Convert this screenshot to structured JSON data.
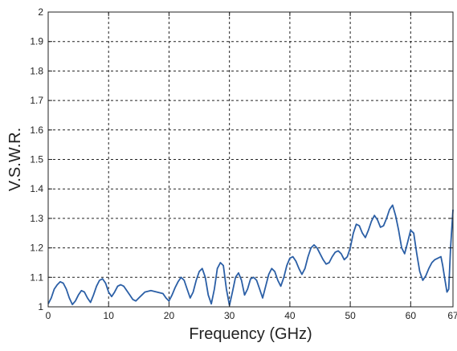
{
  "chart_data": {
    "type": "line",
    "title": "",
    "xlabel": "Frequency (GHz)",
    "ylabel": "V.S.W.R.",
    "xlim": [
      0,
      67
    ],
    "ylim": [
      1,
      2
    ],
    "x_ticks": [
      0,
      10,
      20,
      30,
      40,
      50,
      60,
      67
    ],
    "y_ticks": [
      1,
      1.1,
      1.2,
      1.3,
      1.4,
      1.5,
      1.6,
      1.7,
      1.8,
      1.9,
      2
    ],
    "x_tick_labels": [
      "0",
      "10",
      "20",
      "30",
      "40",
      "50",
      "60",
      "67"
    ],
    "y_tick_labels": [
      "1",
      "1.1",
      "1.2",
      "1.3",
      "1.4",
      "1.5",
      "1.6",
      "1.7",
      "1.8",
      "1.9",
      "2"
    ],
    "grid": true,
    "grid_style": "dashed",
    "legend": "none",
    "series": [
      {
        "color": "#2b5fa6",
        "points": [
          [
            0,
            1.01
          ],
          [
            0.5,
            1.03
          ],
          [
            1,
            1.06
          ],
          [
            1.5,
            1.075
          ],
          [
            2,
            1.085
          ],
          [
            2.5,
            1.08
          ],
          [
            3,
            1.06
          ],
          [
            3.5,
            1.03
          ],
          [
            4,
            1.008
          ],
          [
            4.5,
            1.02
          ],
          [
            5,
            1.04
          ],
          [
            5.5,
            1.055
          ],
          [
            6,
            1.05
          ],
          [
            6.5,
            1.03
          ],
          [
            7,
            1.015
          ],
          [
            7.5,
            1.04
          ],
          [
            8,
            1.07
          ],
          [
            8.5,
            1.09
          ],
          [
            9,
            1.095
          ],
          [
            9.5,
            1.08
          ],
          [
            10,
            1.05
          ],
          [
            10.5,
            1.035
          ],
          [
            11,
            1.05
          ],
          [
            11.5,
            1.07
          ],
          [
            12,
            1.075
          ],
          [
            12.5,
            1.07
          ],
          [
            13,
            1.055
          ],
          [
            13.5,
            1.04
          ],
          [
            14,
            1.025
          ],
          [
            14.5,
            1.02
          ],
          [
            15,
            1.03
          ],
          [
            15.5,
            1.04
          ],
          [
            16,
            1.05
          ],
          [
            17,
            1.055
          ],
          [
            18,
            1.05
          ],
          [
            19,
            1.045
          ],
          [
            19.5,
            1.03
          ],
          [
            20,
            1.02
          ],
          [
            20.5,
            1.04
          ],
          [
            21,
            1.065
          ],
          [
            21.5,
            1.085
          ],
          [
            22,
            1.1
          ],
          [
            22.5,
            1.09
          ],
          [
            23,
            1.06
          ],
          [
            23.5,
            1.03
          ],
          [
            24,
            1.05
          ],
          [
            24.5,
            1.09
          ],
          [
            25,
            1.12
          ],
          [
            25.5,
            1.13
          ],
          [
            26,
            1.1
          ],
          [
            26.5,
            1.04
          ],
          [
            27,
            1.01
          ],
          [
            27.5,
            1.06
          ],
          [
            28,
            1.13
          ],
          [
            28.5,
            1.15
          ],
          [
            29,
            1.14
          ],
          [
            29.5,
            1.06
          ],
          [
            30,
            1.005
          ],
          [
            30.5,
            1.05
          ],
          [
            31,
            1.1
          ],
          [
            31.5,
            1.115
          ],
          [
            32,
            1.09
          ],
          [
            32.5,
            1.04
          ],
          [
            33,
            1.06
          ],
          [
            33.5,
            1.095
          ],
          [
            34,
            1.1
          ],
          [
            34.5,
            1.09
          ],
          [
            35,
            1.06
          ],
          [
            35.5,
            1.03
          ],
          [
            36,
            1.07
          ],
          [
            36.5,
            1.11
          ],
          [
            37,
            1.13
          ],
          [
            37.5,
            1.12
          ],
          [
            38,
            1.09
          ],
          [
            38.5,
            1.07
          ],
          [
            39,
            1.1
          ],
          [
            39.5,
            1.14
          ],
          [
            40,
            1.165
          ],
          [
            40.5,
            1.17
          ],
          [
            41,
            1.155
          ],
          [
            41.5,
            1.13
          ],
          [
            42,
            1.11
          ],
          [
            42.5,
            1.13
          ],
          [
            43,
            1.17
          ],
          [
            43.5,
            1.2
          ],
          [
            44,
            1.21
          ],
          [
            44.5,
            1.2
          ],
          [
            45,
            1.18
          ],
          [
            45.5,
            1.16
          ],
          [
            46,
            1.145
          ],
          [
            46.5,
            1.15
          ],
          [
            47,
            1.17
          ],
          [
            47.5,
            1.185
          ],
          [
            48,
            1.19
          ],
          [
            48.5,
            1.18
          ],
          [
            49,
            1.16
          ],
          [
            49.5,
            1.17
          ],
          [
            50,
            1.2
          ],
          [
            50.5,
            1.25
          ],
          [
            51,
            1.28
          ],
          [
            51.5,
            1.275
          ],
          [
            52,
            1.25
          ],
          [
            52.5,
            1.235
          ],
          [
            53,
            1.26
          ],
          [
            53.5,
            1.29
          ],
          [
            54,
            1.31
          ],
          [
            54.5,
            1.295
          ],
          [
            55,
            1.27
          ],
          [
            55.5,
            1.275
          ],
          [
            56,
            1.3
          ],
          [
            56.5,
            1.33
          ],
          [
            57,
            1.345
          ],
          [
            57.5,
            1.31
          ],
          [
            58,
            1.26
          ],
          [
            58.5,
            1.2
          ],
          [
            59,
            1.18
          ],
          [
            59.5,
            1.22
          ],
          [
            60,
            1.26
          ],
          [
            60.5,
            1.25
          ],
          [
            61,
            1.18
          ],
          [
            61.5,
            1.12
          ],
          [
            62,
            1.09
          ],
          [
            62.5,
            1.105
          ],
          [
            63,
            1.13
          ],
          [
            63.5,
            1.15
          ],
          [
            64,
            1.16
          ],
          [
            64.5,
            1.165
          ],
          [
            65,
            1.17
          ],
          [
            65.3,
            1.14
          ],
          [
            65.6,
            1.1
          ],
          [
            66,
            1.05
          ],
          [
            66.3,
            1.06
          ],
          [
            66.6,
            1.2
          ],
          [
            67,
            1.33
          ]
        ]
      }
    ]
  }
}
